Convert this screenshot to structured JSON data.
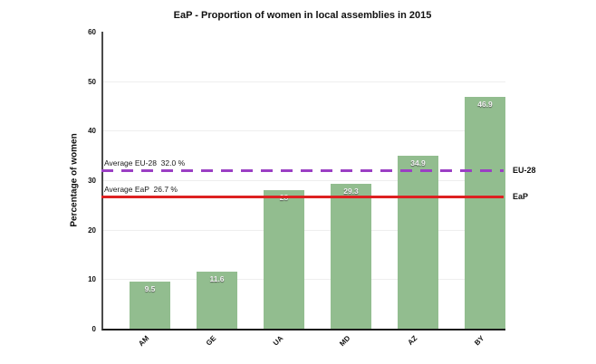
{
  "chart_data": {
    "type": "bar",
    "title": "EaP - Proportion of women in local assemblies in 2015",
    "xlabel": "",
    "ylabel": "Percentage of women",
    "categories": [
      "AM",
      "GE",
      "UA",
      "MD",
      "AZ",
      "BY"
    ],
    "values": [
      9.5,
      11.6,
      28,
      29.3,
      34.9,
      46.9
    ],
    "bar_labels": [
      "9.5",
      "11.6",
      "28",
      "29.3",
      "34.9",
      "46.9"
    ],
    "bar_color": "#92BD8F",
    "ylim": [
      0,
      60
    ],
    "y_tick_interval": 10,
    "y_tick_labels": [
      "0",
      "10",
      "20",
      "30",
      "40",
      "50",
      "60"
    ],
    "grid": true,
    "legend_position": "none",
    "reference_lines": [
      {
        "name": "EU-28",
        "value": 32.0,
        "annotation": "Average EU-28  32.0 %",
        "right_label": "EU-28",
        "style": "dashed",
        "color": "#9B3FC4"
      },
      {
        "name": "EaP",
        "value": 26.7,
        "annotation": "Average EaP  26.7 %",
        "right_label": "EaP",
        "style": "solid",
        "color": "#DD2121"
      }
    ]
  }
}
